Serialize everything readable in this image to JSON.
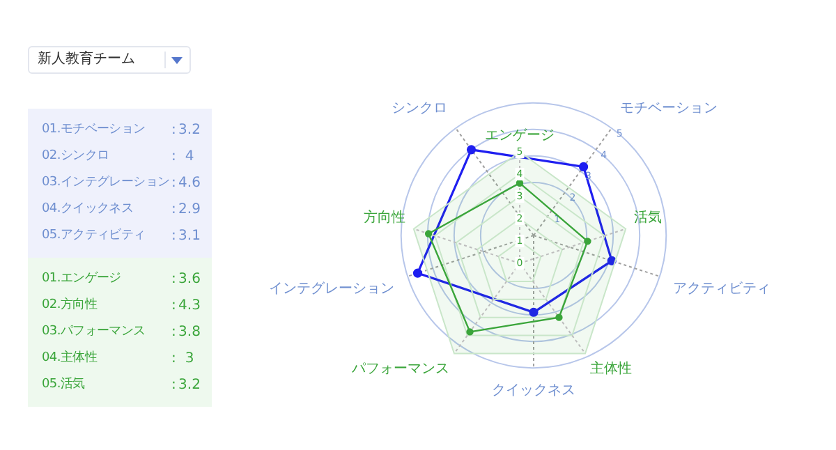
{
  "chart_data": [
    {
      "type": "other",
      "annotations": [
        "01.モチベーション",
        ":",
        "3.2",
        "02.シンクロ",
        ":",
        "4",
        "03.インテグレーション",
        ":",
        "4.6",
        "04.クイックネス",
        ":",
        "2.9",
        "05.アクティビティ",
        ":",
        "3.1"
      ]
    },
    {
      "type": "other",
      "annotations": [
        "01.エンゲージ",
        ":",
        "3.6",
        "02.方向性",
        ":",
        "4.3",
        "03.パフォーマンス",
        ":",
        "3.8",
        "04.主体性",
        ":",
        "3",
        "05.活気",
        ":",
        "3.2"
      ]
    },
    {
      "type": "radar",
      "categories": [
        "モチベーション",
        "アクティビティ",
        "クイックネス",
        "インテグレーション",
        "シンクロ"
      ],
      "series": [
        {
          "color": "#1f1ff0",
          "values": [
            3.2,
            3.1,
            2.9,
            4.6,
            4
          ]
        }
      ],
      "ylim": [
        0,
        5
      ],
      "yticks": [
        1,
        2,
        3,
        4,
        5
      ],
      "grid": true,
      "annotations": [
        "新人教育チーム"
      ]
    },
    {
      "type": "radar",
      "categories": [
        "エンゲージ",
        "活気",
        "主体性",
        "パフォーマンス",
        "方向性"
      ],
      "series": [
        {
          "color": "#3aa53a",
          "values": [
            3.6,
            3.2,
            3,
            3.8,
            4.3
          ]
        }
      ],
      "ylim": [
        0,
        5
      ],
      "yticks": [
        0,
        1,
        2,
        3,
        4,
        5
      ],
      "grid": true
    }
  ]
}
